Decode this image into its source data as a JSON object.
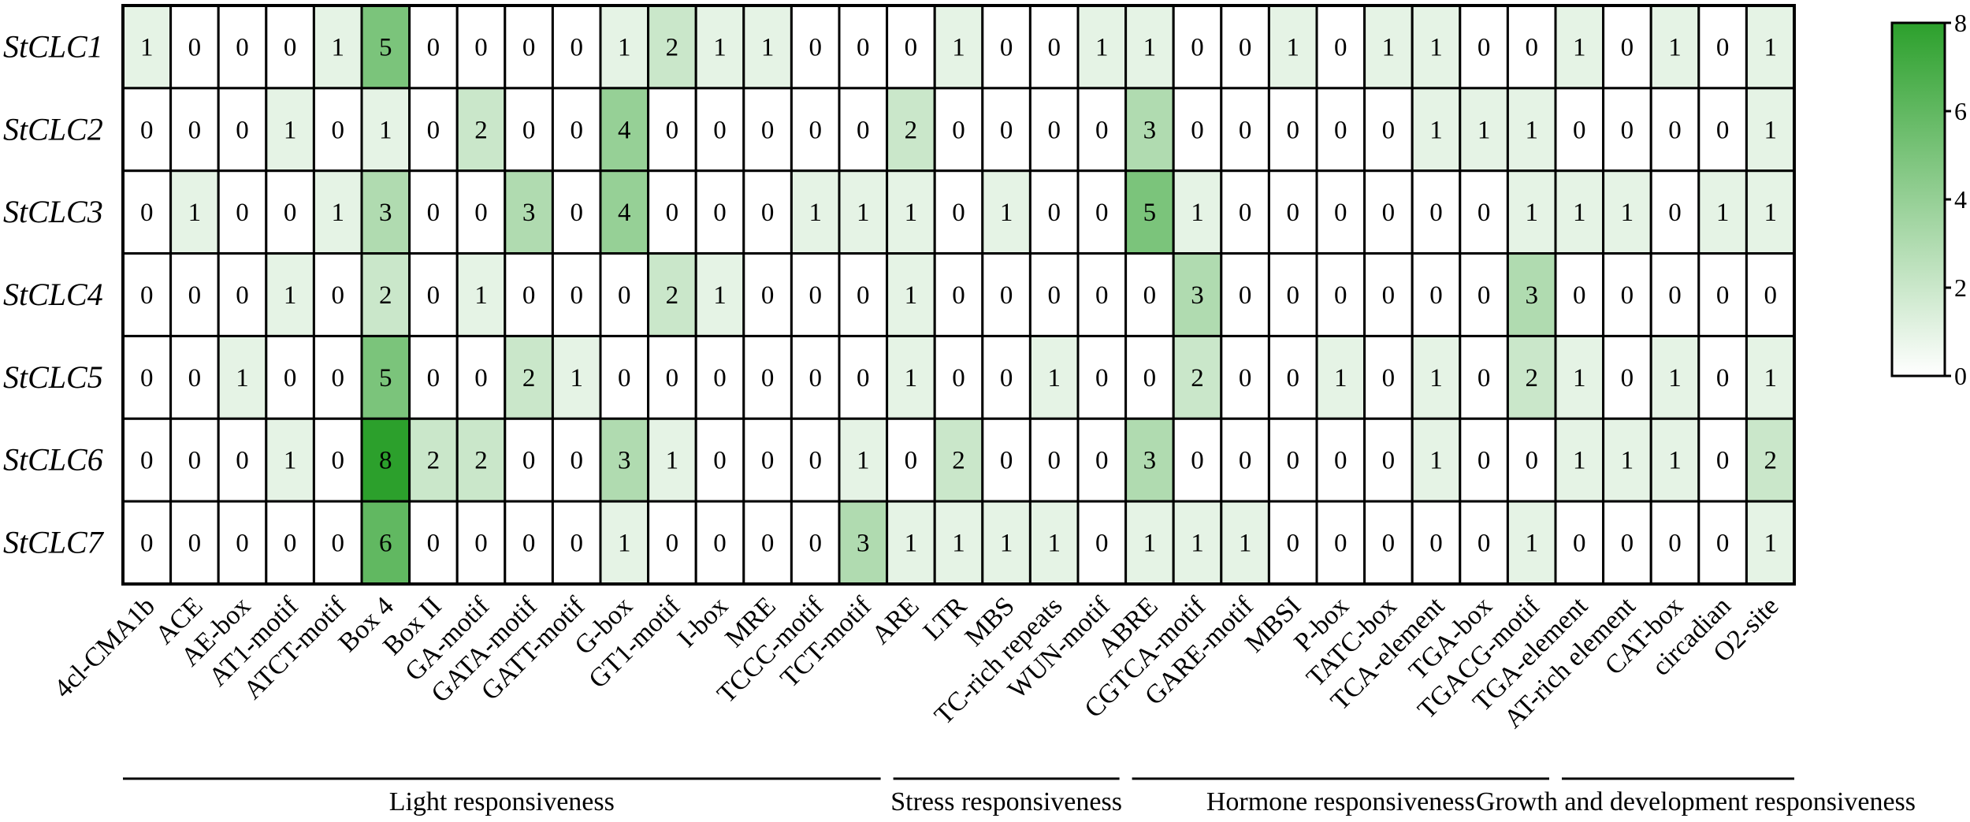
{
  "chart_data": {
    "type": "heatmap",
    "rows": [
      "StCLC1",
      "StCLC2",
      "StCLC3",
      "StCLC4",
      "StCLC5",
      "StCLC6",
      "StCLC7"
    ],
    "columns": [
      "4cl-CMA1b",
      "ACE",
      "AE-box",
      "AT1-motif",
      "ATCT-motif",
      "Box 4",
      "Box II",
      "GA-motif",
      "GATA-motif",
      "GATT-motif",
      "G-box",
      "GT1-motif",
      "I-box",
      "MRE",
      "TCCC-motif",
      "TCT-motif",
      "ARE",
      "LTR",
      "MBS",
      "TC-rich repeats",
      "WUN-motif",
      "ABRE",
      "CGTCA-motif",
      "GARE-motif",
      "MBSI",
      "P-box",
      "TATC-box",
      "TCA-element",
      "TGA-box",
      "TGACG-motif",
      "TGA-element",
      "AT-rich element",
      "CAT-box",
      "circadian",
      "O2-site"
    ],
    "values": [
      [
        1,
        0,
        0,
        0,
        1,
        5,
        0,
        0,
        0,
        0,
        1,
        2,
        1,
        1,
        0,
        0,
        0,
        1,
        0,
        0,
        1,
        1,
        0,
        0,
        1,
        0,
        1,
        1,
        0,
        0,
        1,
        0,
        1,
        0,
        1
      ],
      [
        0,
        0,
        0,
        1,
        0,
        1,
        0,
        2,
        0,
        0,
        4,
        0,
        0,
        0,
        0,
        0,
        2,
        0,
        0,
        0,
        0,
        3,
        0,
        0,
        0,
        0,
        0,
        1,
        1,
        1,
        0,
        0,
        0,
        0,
        1
      ],
      [
        0,
        1,
        0,
        0,
        1,
        3,
        0,
        0,
        3,
        0,
        4,
        0,
        0,
        0,
        1,
        1,
        1,
        0,
        1,
        0,
        0,
        5,
        1,
        0,
        0,
        0,
        0,
        0,
        0,
        1,
        1,
        1,
        0,
        1,
        1
      ],
      [
        0,
        0,
        0,
        1,
        0,
        2,
        0,
        1,
        0,
        0,
        0,
        2,
        1,
        0,
        0,
        0,
        1,
        0,
        0,
        0,
        0,
        0,
        3,
        0,
        0,
        0,
        0,
        0,
        0,
        3,
        0,
        0,
        0,
        0,
        0
      ],
      [
        0,
        0,
        1,
        0,
        0,
        5,
        0,
        0,
        2,
        1,
        0,
        0,
        0,
        0,
        0,
        0,
        1,
        0,
        0,
        1,
        0,
        0,
        2,
        0,
        0,
        1,
        0,
        1,
        0,
        2,
        1,
        0,
        1,
        0,
        1
      ],
      [
        0,
        0,
        0,
        1,
        0,
        8,
        2,
        2,
        0,
        0,
        3,
        1,
        0,
        0,
        0,
        1,
        0,
        2,
        0,
        0,
        0,
        3,
        0,
        0,
        0,
        0,
        0,
        1,
        0,
        0,
        1,
        1,
        1,
        0,
        2
      ],
      [
        0,
        0,
        0,
        0,
        0,
        6,
        0,
        0,
        0,
        0,
        1,
        0,
        0,
        0,
        0,
        3,
        1,
        1,
        1,
        1,
        0,
        1,
        1,
        1,
        0,
        0,
        0,
        0,
        0,
        1,
        0,
        0,
        0,
        0,
        1
      ]
    ],
    "groups": [
      {
        "label": "Light responsiveness",
        "first": 0,
        "last": 15
      },
      {
        "label": "Stress responsiveness",
        "first": 16,
        "last": 20
      },
      {
        "label": "Hormone responsiveness",
        "first": 21,
        "last": 29
      },
      {
        "label": "Growth and development responsiveness",
        "first": 30,
        "last": 34
      }
    ],
    "colorbar": {
      "min": 0,
      "max": 8,
      "ticks": [
        "0",
        "2",
        "4",
        "6",
        "8"
      ],
      "low_color": "#ffffff",
      "high_color": "#2ca02c",
      "position": "right"
    }
  }
}
